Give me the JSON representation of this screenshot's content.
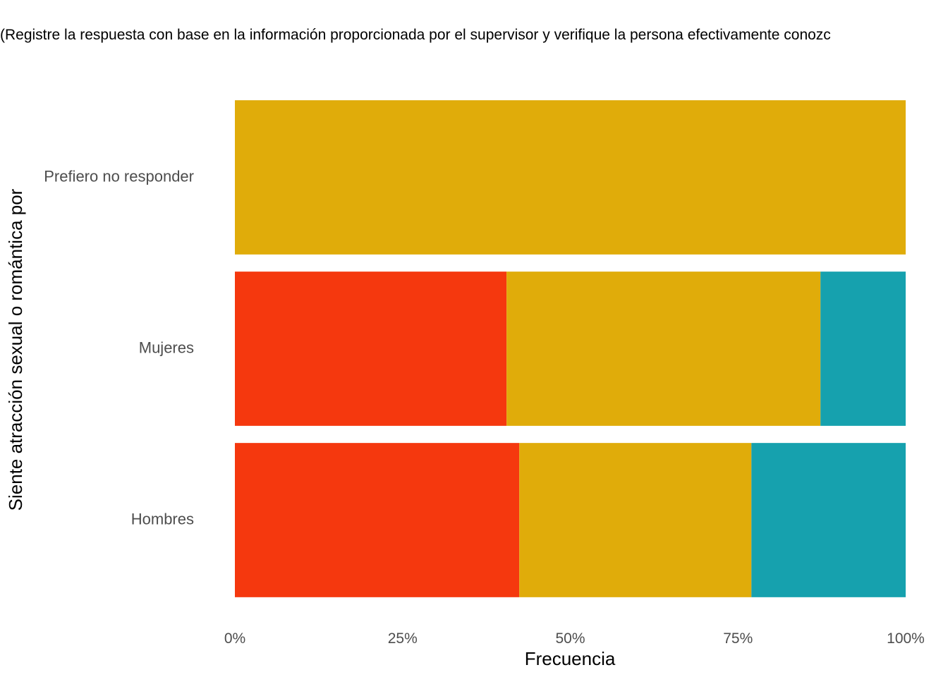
{
  "chart_data": {
    "type": "bar",
    "orientation": "horizontal",
    "stacked": true,
    "normalized": true,
    "title": "(Registre la respuesta con base en la información proporcionada por el supervisor y verifique la persona efectivamente conozc",
    "xlabel": "Frecuencia",
    "ylabel": "Siente atracción sexual o romántica por",
    "xlim": [
      0,
      1
    ],
    "x_ticks": [
      0,
      0.25,
      0.5,
      0.75,
      1
    ],
    "x_tick_labels": [
      "0%",
      "25%",
      "50%",
      "75%",
      "100%"
    ],
    "grid": false,
    "legend": "none",
    "categories": [
      "Hombres",
      "Mujeres",
      "Prefiero no responder"
    ],
    "series": [
      {
        "color": "#F5380E",
        "values": [
          0.424,
          0.405,
          0
        ]
      },
      {
        "color": "#E0AC0A",
        "values": [
          0.346,
          0.468,
          1.0
        ]
      },
      {
        "color": "#16A1AE",
        "values": [
          0.23,
          0.127,
          0
        ]
      }
    ]
  }
}
